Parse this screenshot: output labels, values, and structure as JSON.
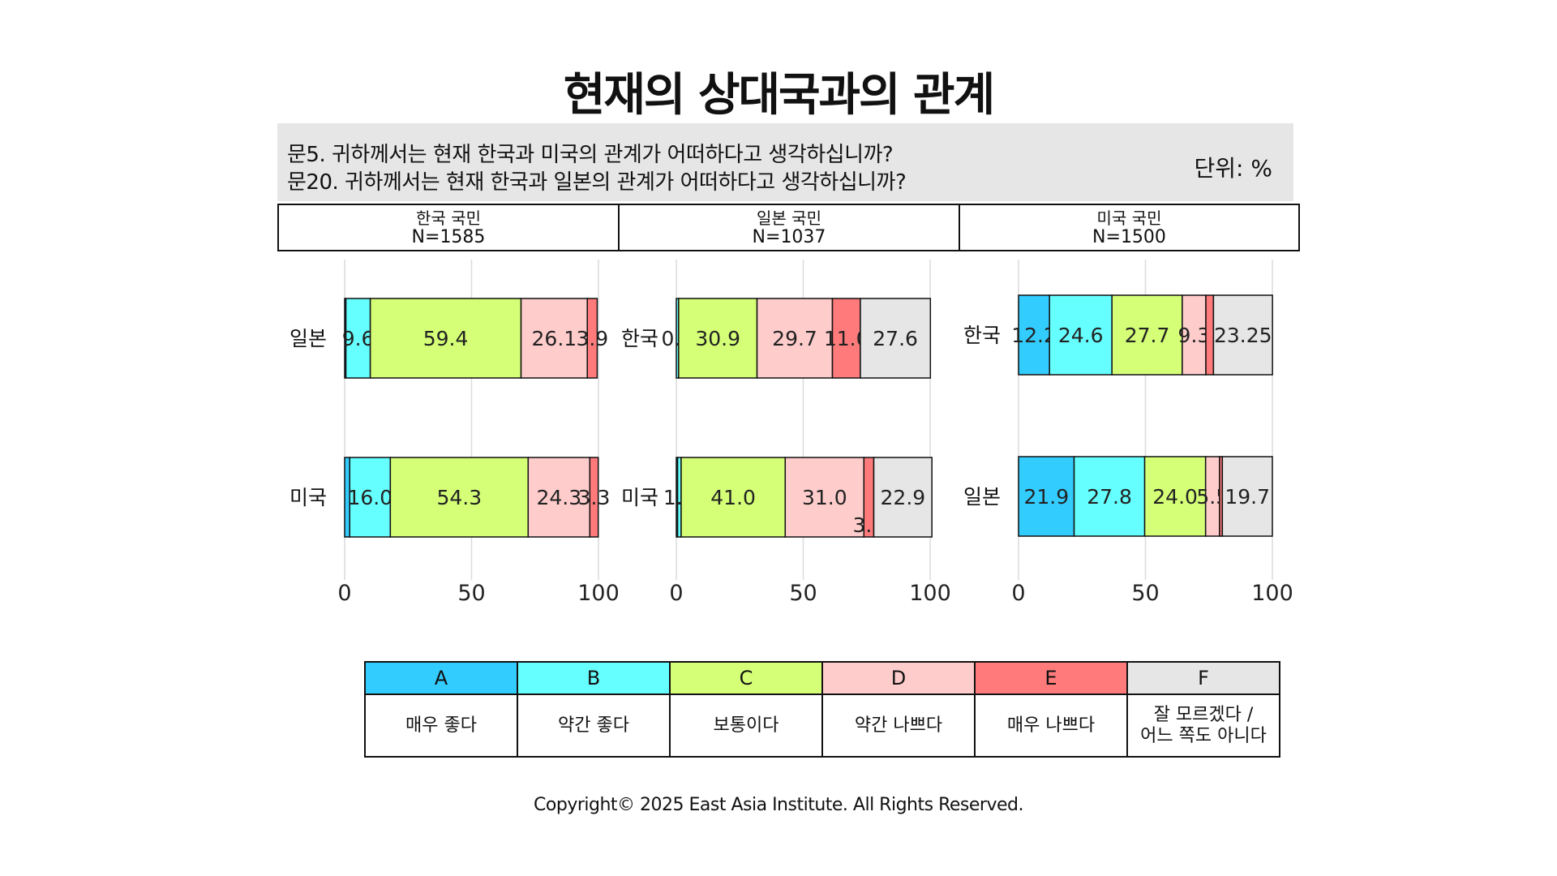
{
  "title": "현재의 상대국과의 관계",
  "question": {
    "line1": "문5. 귀하께서는 현재 한국과 미국의 관계가 어떠하다고 생각하십니까?",
    "line2": "문20. 귀하께서는 현재 한국과 일본의 관계가 어떠하다고 생각하십니까?",
    "unit": "단위: %"
  },
  "panels": [
    {
      "name": "한국 국민",
      "n": "N=1585"
    },
    {
      "name": "일본 국민",
      "n": "N=1037"
    },
    {
      "name": "미국 국민",
      "n": "N=1500"
    }
  ],
  "legend": [
    {
      "code": "A",
      "label": "매우 좋다",
      "color": "#33ccff"
    },
    {
      "code": "B",
      "label": "약간 좋다",
      "color": "#66ffff"
    },
    {
      "code": "C",
      "label": "보통이다",
      "color": "#d4ff77"
    },
    {
      "code": "D",
      "label": "약간 나쁘다",
      "color": "#ffcccc"
    },
    {
      "code": "E",
      "label": "매우 나쁘다",
      "color": "#ff7b7b"
    },
    {
      "code": "F",
      "label": "잘 모르겠다 /\n어느 쪽도 아니다",
      "color": "#e6e6e6"
    }
  ],
  "chart_data": {
    "type": "bar",
    "orientation": "horizontal",
    "stacked": true,
    "xlim": [
      0,
      100
    ],
    "xticks": [
      0,
      50,
      100
    ],
    "grid": true,
    "categories_codes": [
      "A",
      "B",
      "C",
      "D",
      "E",
      "F"
    ],
    "panels": [
      {
        "panel": "한국 국민",
        "rows": [
          {
            "label": "일본",
            "values": [
              0.5,
              9.6,
              59.4,
              26.1,
              3.9,
              0
            ],
            "labels": [
              "",
              "9.6",
              "59.4",
              "26.1",
              "3.9",
              ""
            ]
          },
          {
            "label": "미국",
            "values": [
              2,
              16.0,
              54.3,
              24.3,
              3.3,
              0
            ],
            "labels": [
              "",
              "16.0",
              "54.3",
              "24.3",
              "3.3",
              ""
            ]
          }
        ]
      },
      {
        "panel": "일본 국민",
        "rows": [
          {
            "label": "한국",
            "values": [
              0,
              0.9,
              30.9,
              29.7,
              11.0,
              27.6
            ],
            "labels": [
              "",
              "0.9",
              "30.9",
              "29.7",
              "11.0",
              "27.6"
            ]
          },
          {
            "label": "미국",
            "values": [
              0.5,
              1.4,
              41.0,
              31.0,
              3.9,
              22.9
            ],
            "labels": [
              "",
              "1.4",
              "41.0",
              "31.0",
              "3.9",
              "22.9"
            ]
          }
        ]
      },
      {
        "panel": "미국 국민",
        "rows": [
          {
            "label": "한국",
            "values": [
              12.2,
              24.6,
              27.7,
              9.3,
              3.0,
              23.25
            ],
            "labels": [
              "12.2",
              "24.6",
              "27.7",
              "9.3",
              "",
              "23.25"
            ]
          },
          {
            "label": "일본",
            "values": [
              21.9,
              27.8,
              24.0,
              5.5,
              1.1,
              19.7
            ],
            "labels": [
              "21.9",
              "27.8",
              "24.0",
              "5.5",
              "",
              "19.7"
            ]
          }
        ]
      }
    ]
  },
  "copyright": "Copyright© 2025 East Asia Institute. All Rights Reserved."
}
